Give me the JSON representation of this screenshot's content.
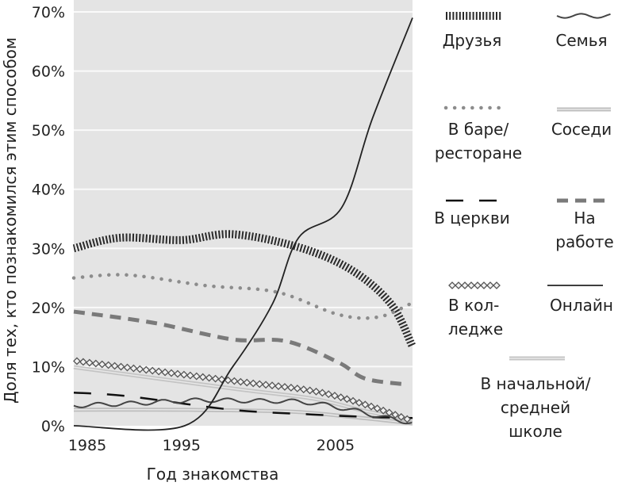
{
  "chart_data": {
    "type": "line",
    "xlabel": "Год знакомства",
    "ylabel": "Доля тех, кто познакомился этим способом",
    "xlim": [
      1988,
      2010
    ],
    "ylim": [
      0,
      70
    ],
    "x_ticks": [
      1985,
      1995,
      2005
    ],
    "y_ticks": [
      "0%",
      "10%",
      "20%",
      "30%",
      "40%",
      "50%",
      "60%",
      "70%"
    ],
    "y_tick_values": [
      0,
      10,
      20,
      30,
      40,
      50,
      60,
      70
    ],
    "grid": "horizontal",
    "legend_placement": "right",
    "background": "#e4e4e4",
    "series": [
      {
        "name": "Друзья",
        "style": "hatched",
        "color": "#2a2a2a",
        "x": [
          1988,
          1991,
          1995,
          1998.3,
          2002.6,
          2006,
          2008.6,
          2010
        ],
        "y": [
          30,
          31.8,
          31.4,
          32.4,
          30.2,
          26.4,
          20.6,
          13.4
        ]
      },
      {
        "name": "Семья",
        "style": "wavy",
        "color": "#444444",
        "x": [
          1988,
          1992,
          1996,
          2000,
          2003,
          2006,
          2008,
          2010
        ],
        "y": [
          3.4,
          3.8,
          4.3,
          4.2,
          4.0,
          2.7,
          1.5,
          0.5
        ]
      },
      {
        "name": "В баре/ ресторане",
        "style": "dotted",
        "color": "#8c8c8c",
        "x": [
          1988,
          1991.5,
          1996.6,
          2001.2,
          2005.2,
          2007.8,
          2010
        ],
        "y": [
          25,
          25.5,
          23.7,
          22.6,
          18.8,
          18.4,
          20.8
        ]
      },
      {
        "name": "Соседи",
        "style": "double-light",
        "color": "#bdbdbd",
        "x": [
          1988,
          1995,
          2002,
          2006,
          2010
        ],
        "y": [
          2.7,
          2.7,
          2.4,
          1.5,
          0.4
        ]
      },
      {
        "name": "В церкви",
        "style": "long-dash",
        "color": "#111111",
        "x": [
          1988,
          1991.5,
          1998.3,
          2003.5,
          2007,
          2010
        ],
        "y": [
          5.6,
          5.0,
          2.7,
          1.9,
          1.5,
          1.3
        ]
      },
      {
        "name": "На работе",
        "style": "dash",
        "color": "#7a7a7a",
        "x": [
          1988,
          1993.2,
          1998.3,
          2001.8,
          2005.2,
          2006.9,
          2009.5
        ],
        "y": [
          19.3,
          17.4,
          14.6,
          14.3,
          10.7,
          8,
          7
        ]
      },
      {
        "name": "В кол- ледже",
        "style": "diamonds",
        "color": "#555555",
        "x": [
          1988,
          1998.3,
          2003.5,
          2006.9,
          2009.9
        ],
        "y": [
          11,
          7.6,
          5.9,
          3.6,
          0.9
        ]
      },
      {
        "name": "Онлайн",
        "style": "solid",
        "color": "#222222",
        "x": [
          1988,
          1995.2,
          1998.3,
          2000.9,
          2002.6,
          2005.4,
          2007.4,
          2010
        ],
        "y": [
          0,
          0,
          9.9,
          20.6,
          31.8,
          36.9,
          52,
          69
        ]
      },
      {
        "name": "В начальной/ средней школе",
        "style": "double-light",
        "color": "#c4c4c4",
        "x": [
          1988,
          1998.3,
          2003.5,
          2006.9,
          2010
        ],
        "y": [
          9.9,
          6.3,
          4.6,
          2.5,
          1
        ]
      }
    ]
  },
  "legend": [
    {
      "lines": [
        "Друзья"
      ]
    },
    {
      "lines": [
        "Семья"
      ]
    },
    {
      "lines": [
        "В баре/",
        "ресторане"
      ]
    },
    {
      "lines": [
        "Соседи"
      ]
    },
    {
      "lines": [
        "В церкви"
      ]
    },
    {
      "lines": [
        "На",
        "работе"
      ]
    },
    {
      "lines": [
        "В кол-",
        "ледже"
      ]
    },
    {
      "lines": [
        "Онлайн"
      ]
    },
    {
      "lines": [
        "В начальной/",
        "средней",
        "школе"
      ]
    }
  ]
}
